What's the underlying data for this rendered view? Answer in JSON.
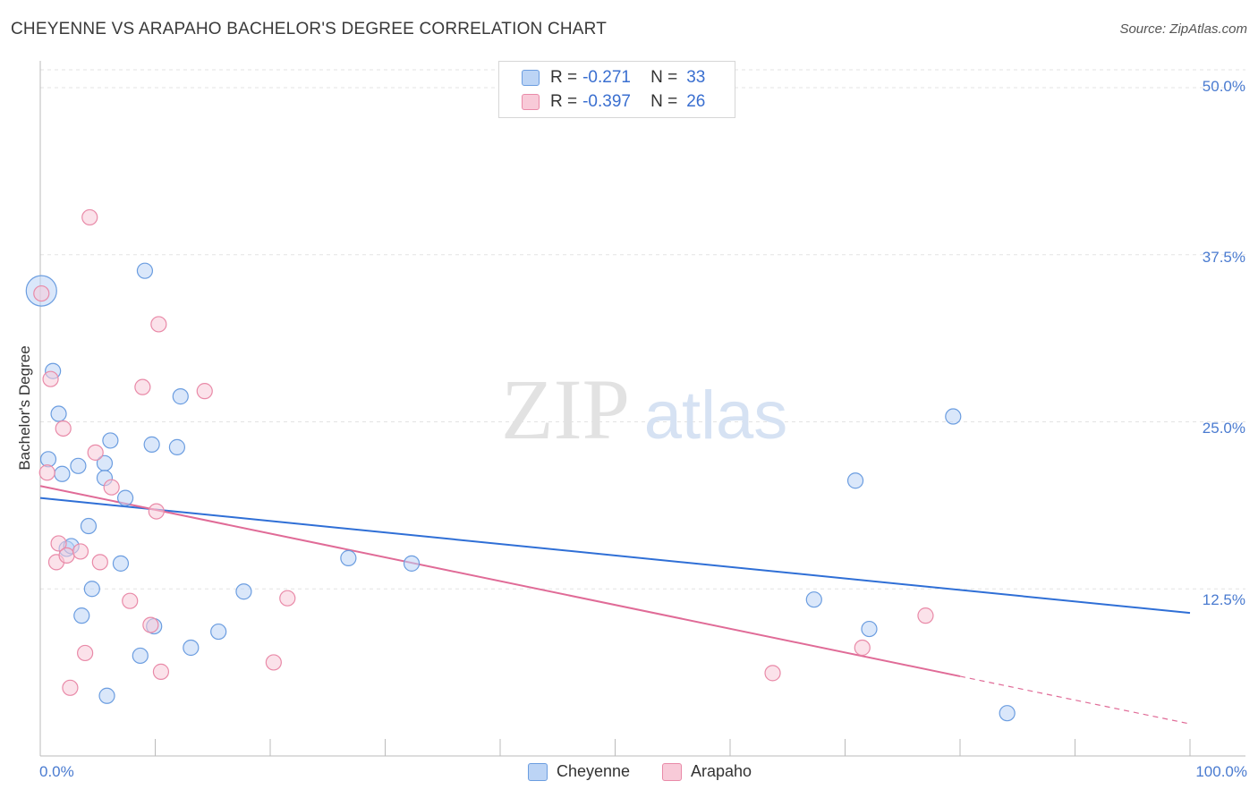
{
  "chart_data": {
    "type": "scatter",
    "title": "CHEYENNE VS ARAPAHO BACHELOR'S DEGREE CORRELATION CHART",
    "source": "Source: ZipAtlas.com",
    "xlabel": "",
    "ylabel": "Bachelor's Degree",
    "xlim": [
      0,
      100
    ],
    "ylim": [
      0,
      52
    ],
    "x_tick_labels": [
      "0.0%",
      "100.0%"
    ],
    "y_ticks": [
      12.5,
      25.0,
      37.5,
      50.0
    ],
    "y_tick_labels": [
      "12.5%",
      "25.0%",
      "37.5%",
      "50.0%"
    ],
    "watermark": "ZIPatlas",
    "series": [
      {
        "name": "Cheyenne",
        "color": "#6b9de0",
        "fill": "#bcd4f5",
        "R": "-0.271",
        "N": "33",
        "trend": {
          "x": [
            0,
            100
          ],
          "y": [
            19.3,
            10.7
          ],
          "dashed_from": null
        },
        "points": [
          {
            "x": 0.1,
            "y": 34.8,
            "big": true
          },
          {
            "x": 1.1,
            "y": 28.8
          },
          {
            "x": 0.7,
            "y": 22.2
          },
          {
            "x": 1.6,
            "y": 25.6
          },
          {
            "x": 1.9,
            "y": 21.1
          },
          {
            "x": 2.3,
            "y": 15.5
          },
          {
            "x": 2.7,
            "y": 15.7
          },
          {
            "x": 3.3,
            "y": 21.7
          },
          {
            "x": 3.6,
            "y": 10.5
          },
          {
            "x": 4.2,
            "y": 17.2
          },
          {
            "x": 4.5,
            "y": 12.5
          },
          {
            "x": 5.6,
            "y": 21.9
          },
          {
            "x": 5.6,
            "y": 20.8
          },
          {
            "x": 6.1,
            "y": 23.6
          },
          {
            "x": 5.8,
            "y": 4.5
          },
          {
            "x": 7.0,
            "y": 14.4
          },
          {
            "x": 7.4,
            "y": 19.3
          },
          {
            "x": 8.7,
            "y": 7.5
          },
          {
            "x": 9.1,
            "y": 36.3
          },
          {
            "x": 9.7,
            "y": 23.3
          },
          {
            "x": 9.9,
            "y": 9.7
          },
          {
            "x": 11.9,
            "y": 23.1
          },
          {
            "x": 12.2,
            "y": 26.9
          },
          {
            "x": 13.1,
            "y": 8.1
          },
          {
            "x": 15.5,
            "y": 9.3
          },
          {
            "x": 17.7,
            "y": 12.3
          },
          {
            "x": 26.8,
            "y": 14.8
          },
          {
            "x": 32.3,
            "y": 14.4
          },
          {
            "x": 67.3,
            "y": 11.7
          },
          {
            "x": 70.9,
            "y": 20.6
          },
          {
            "x": 72.1,
            "y": 9.5
          },
          {
            "x": 79.4,
            "y": 25.4
          },
          {
            "x": 84.1,
            "y": 3.2
          }
        ]
      },
      {
        "name": "Arapaho",
        "color": "#e98aa8",
        "fill": "#f8cad8",
        "R": "-0.397",
        "N": "26",
        "trend": {
          "x": [
            0,
            100
          ],
          "y": [
            20.2,
            2.4
          ],
          "dashed_from": 80
        },
        "points": [
          {
            "x": 0.1,
            "y": 34.6
          },
          {
            "x": 0.6,
            "y": 21.2
          },
          {
            "x": 0.9,
            "y": 28.2
          },
          {
            "x": 1.4,
            "y": 14.5
          },
          {
            "x": 1.6,
            "y": 15.9
          },
          {
            "x": 2.0,
            "y": 24.5
          },
          {
            "x": 2.3,
            "y": 15.0
          },
          {
            "x": 2.6,
            "y": 5.1
          },
          {
            "x": 3.5,
            "y": 15.3
          },
          {
            "x": 3.9,
            "y": 7.7
          },
          {
            "x": 4.3,
            "y": 40.3
          },
          {
            "x": 4.8,
            "y": 22.7
          },
          {
            "x": 5.2,
            "y": 14.5
          },
          {
            "x": 6.2,
            "y": 20.1
          },
          {
            "x": 7.8,
            "y": 11.6
          },
          {
            "x": 8.9,
            "y": 27.6
          },
          {
            "x": 9.6,
            "y": 9.8
          },
          {
            "x": 10.1,
            "y": 18.3
          },
          {
            "x": 10.3,
            "y": 32.3
          },
          {
            "x": 10.5,
            "y": 6.3
          },
          {
            "x": 14.3,
            "y": 27.3
          },
          {
            "x": 20.3,
            "y": 7.0
          },
          {
            "x": 21.5,
            "y": 11.8
          },
          {
            "x": 63.7,
            "y": 6.2
          },
          {
            "x": 71.5,
            "y": 8.1
          },
          {
            "x": 77.0,
            "y": 10.5
          }
        ]
      }
    ]
  }
}
